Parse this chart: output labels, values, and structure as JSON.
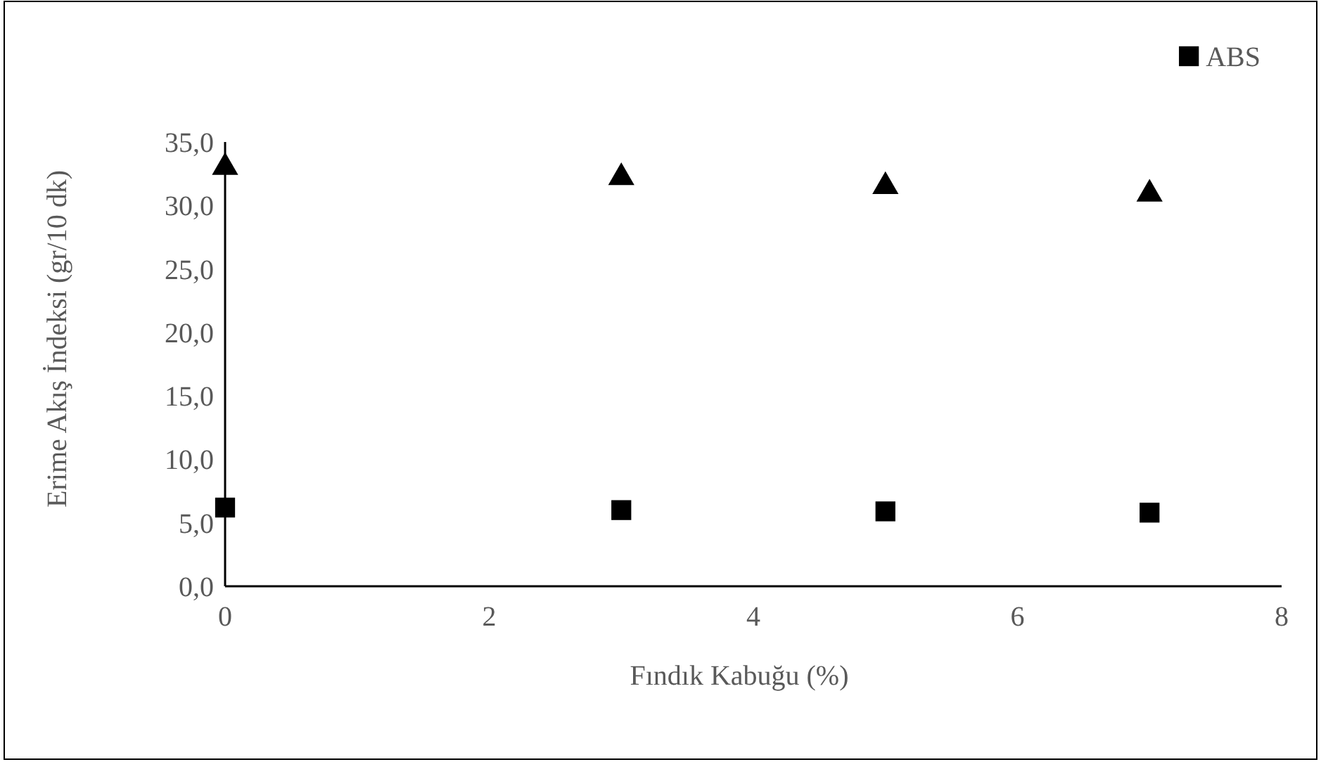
{
  "chart_data": {
    "type": "scatter",
    "xlabel": "Fındık Kabuğu (%)",
    "ylabel": "Erime Akış İndeksi (gr/10 dk)",
    "x": [
      0,
      3,
      5,
      7
    ],
    "series": [
      {
        "name": "ABS",
        "color": "#000000",
        "marker": "square",
        "values": [
          6.2,
          6.0,
          5.9,
          5.8
        ]
      },
      {
        "color": "#000000",
        "marker": "triangle",
        "values": [
          33.0,
          32.2,
          31.5,
          30.9
        ]
      }
    ],
    "xlim": [
      0,
      8
    ],
    "xticks": [
      0,
      2,
      4,
      6,
      8
    ],
    "ylim": [
      0,
      35
    ],
    "yticks": [
      {
        "value": 0,
        "label": "0,0"
      },
      {
        "value": 5,
        "label": "5,0"
      },
      {
        "value": 10,
        "label": "10,0"
      },
      {
        "value": 15,
        "label": "15,0"
      },
      {
        "value": 20,
        "label": "20,0"
      },
      {
        "value": 25,
        "label": "25,0"
      },
      {
        "value": 30,
        "label": "30,0"
      },
      {
        "value": 35,
        "label": "35,0"
      }
    ],
    "grid": false,
    "legend": "top right"
  }
}
